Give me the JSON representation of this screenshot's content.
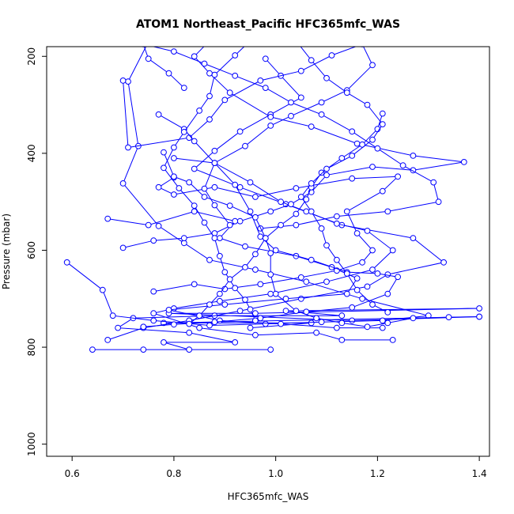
{
  "chart_data": {
    "type": "line",
    "title": "ATOM1 Northeast_Pacific HFC365mfc_WAS",
    "xlabel": "HFC365mfc_WAS",
    "ylabel": "Pressure (mbar)",
    "xlim": [
      0.55,
      1.42
    ],
    "ylim": [
      1025,
      180
    ],
    "x_ticks": [
      0.6,
      0.8,
      1.0,
      1.2,
      1.4
    ],
    "x_tick_labels": [
      "0.6",
      "0.8",
      "1.0",
      "1.2",
      "1.4"
    ],
    "y_ticks": [
      200,
      400,
      600,
      800,
      1000
    ],
    "y_tick_labels": [
      "200",
      "400",
      "600",
      "800",
      "1000"
    ],
    "grid": false,
    "legend": "none",
    "series_color": "#0000ff",
    "marker": "open-circle",
    "series": [
      {
        "points": [
          [
            0.74,
            805
          ],
          [
            0.99,
            805
          ],
          [
            0.64,
            805
          ],
          [
            0.83,
            805
          ],
          [
            0.78,
            790
          ],
          [
            0.92,
            790
          ],
          [
            0.83,
            770
          ],
          [
            0.69,
            760
          ],
          [
            0.72,
            740
          ],
          [
            0.88,
            735
          ],
          [
            1.13,
            735
          ],
          [
            1.02,
            725
          ],
          [
            1.4,
            720
          ],
          [
            0.96,
            730
          ],
          [
            0.79,
            730
          ],
          [
            1.15,
            745
          ],
          [
            1.4,
            737
          ],
          [
            0.78,
            750
          ],
          [
            1.07,
            750
          ],
          [
            0.95,
            760
          ]
        ]
      },
      {
        "points": [
          [
            0.67,
            785
          ],
          [
            0.74,
            760
          ],
          [
            0.83,
            745
          ],
          [
            0.93,
            725
          ],
          [
            1.05,
            700
          ],
          [
            1.18,
            675
          ],
          [
            1.22,
            650
          ],
          [
            1.33,
            625
          ],
          [
            1.27,
            575
          ],
          [
            1.13,
            548
          ],
          [
            1.02,
            505
          ],
          [
            0.93,
            470
          ],
          [
            0.84,
            432
          ],
          [
            0.88,
            395
          ],
          [
            0.93,
            355
          ],
          [
            0.99,
            320
          ],
          [
            1.05,
            285
          ],
          [
            1.01,
            240
          ],
          [
            0.98,
            205
          ]
        ]
      },
      {
        "points": [
          [
            0.59,
            625
          ],
          [
            0.66,
            682
          ],
          [
            0.68,
            735
          ],
          [
            0.76,
            745
          ],
          [
            0.87,
            755
          ],
          [
            0.98,
            752
          ],
          [
            1.09,
            748
          ],
          [
            1.21,
            745
          ],
          [
            1.3,
            735
          ],
          [
            1.17,
            700
          ],
          [
            1.06,
            665
          ],
          [
            0.96,
            640
          ],
          [
            0.87,
            620
          ],
          [
            0.82,
            585
          ],
          [
            0.77,
            550
          ],
          [
            0.7,
            462
          ],
          [
            0.73,
            385
          ],
          [
            0.71,
            252
          ],
          [
            0.75,
            170
          ]
        ]
      },
      {
        "points": [
          [
            0.8,
            410
          ],
          [
            0.88,
            420
          ],
          [
            0.95,
            460
          ],
          [
            1.01,
            500
          ],
          [
            1.06,
            520
          ],
          [
            1.12,
            545
          ],
          [
            1.18,
            560
          ],
          [
            1.23,
            600
          ],
          [
            1.19,
            640
          ],
          [
            1.1,
            665
          ],
          [
            0.99,
            690
          ],
          [
            0.89,
            705
          ],
          [
            0.8,
            720
          ],
          [
            0.76,
            730
          ],
          [
            0.85,
            760
          ],
          [
            0.96,
            775
          ],
          [
            1.08,
            770
          ],
          [
            1.13,
            785
          ],
          [
            1.23,
            785
          ]
        ]
      },
      {
        "points": [
          [
            0.7,
            595
          ],
          [
            0.76,
            580
          ],
          [
            0.82,
            575
          ],
          [
            0.88,
            565
          ],
          [
            0.93,
            540
          ],
          [
            0.99,
            520
          ],
          [
            1.03,
            505
          ],
          [
            1.07,
            480
          ],
          [
            1.1,
            445
          ],
          [
            1.19,
            428
          ],
          [
            1.27,
            435
          ],
          [
            1.37,
            418
          ],
          [
            1.27,
            405
          ],
          [
            1.16,
            380
          ],
          [
            1.07,
            345
          ],
          [
            0.99,
            325
          ],
          [
            0.91,
            275
          ],
          [
            0.87,
            235
          ],
          [
            0.84,
            200
          ],
          [
            0.87,
            168
          ]
        ]
      },
      {
        "points": [
          [
            0.67,
            535
          ],
          [
            0.75,
            548
          ],
          [
            0.84,
            520
          ],
          [
            0.92,
            540
          ],
          [
            0.89,
            575
          ],
          [
            0.94,
            592
          ],
          [
            1.04,
            612
          ],
          [
            1.11,
            635
          ],
          [
            1.16,
            658
          ],
          [
            1.14,
            690
          ],
          [
            1.02,
            700
          ],
          [
            0.9,
            712
          ],
          [
            0.79,
            723
          ],
          [
            0.89,
            745
          ],
          [
            1.01,
            752
          ],
          [
            1.12,
            760
          ],
          [
            1.21,
            760
          ]
        ]
      },
      {
        "points": [
          [
            0.76,
            685
          ],
          [
            0.84,
            670
          ],
          [
            0.9,
            680
          ],
          [
            0.97,
            670
          ],
          [
            1.05,
            656
          ],
          [
            1.12,
            642
          ],
          [
            1.17,
            625
          ],
          [
            1.19,
            600
          ],
          [
            1.16,
            565
          ],
          [
            1.14,
            520
          ],
          [
            1.21,
            478
          ],
          [
            1.24,
            448
          ],
          [
            1.15,
            452
          ],
          [
            1.04,
            472
          ],
          [
            0.96,
            490
          ],
          [
            0.88,
            470
          ],
          [
            0.8,
            485
          ],
          [
            0.77,
            470
          ],
          [
            0.8,
            450
          ]
        ]
      },
      {
        "points": [
          [
            0.7,
            250
          ],
          [
            0.71,
            388
          ],
          [
            0.83,
            368
          ],
          [
            0.87,
            330
          ],
          [
            0.9,
            290
          ],
          [
            0.97,
            250
          ],
          [
            1.05,
            230
          ],
          [
            1.11,
            198
          ],
          [
            1.17,
            175
          ],
          [
            1.19,
            218
          ],
          [
            1.14,
            270
          ],
          [
            1.09,
            295
          ],
          [
            1.03,
            323
          ],
          [
            0.99,
            343
          ],
          [
            0.94,
            385
          ],
          [
            0.88,
            420
          ],
          [
            0.86,
            473
          ],
          [
            0.88,
            507
          ],
          [
            0.91,
            548
          ]
        ]
      },
      {
        "points": [
          [
            0.77,
            320
          ],
          [
            0.82,
            350
          ],
          [
            0.84,
            375
          ],
          [
            0.88,
            420
          ],
          [
            0.92,
            465
          ],
          [
            0.95,
            520
          ],
          [
            0.97,
            572
          ],
          [
            1.0,
            600
          ],
          [
            1.07,
            620
          ],
          [
            1.14,
            645
          ],
          [
            1.2,
            648
          ],
          [
            1.24,
            655
          ],
          [
            1.22,
            690
          ],
          [
            1.15,
            718
          ],
          [
            1.06,
            727
          ],
          [
            0.97,
            740
          ],
          [
            0.88,
            748
          ],
          [
            0.8,
            753
          ],
          [
            0.74,
            758
          ]
        ]
      },
      {
        "points": [
          [
            0.82,
            265
          ],
          [
            0.79,
            235
          ],
          [
            0.75,
            205
          ],
          [
            0.74,
            175
          ],
          [
            0.8,
            190
          ],
          [
            0.86,
            215
          ],
          [
            0.92,
            240
          ],
          [
            0.98,
            265
          ],
          [
            1.03,
            295
          ],
          [
            1.09,
            320
          ],
          [
            1.15,
            355
          ],
          [
            1.2,
            390
          ],
          [
            1.25,
            425
          ],
          [
            1.31,
            460
          ],
          [
            1.32,
            500
          ],
          [
            1.22,
            520
          ],
          [
            1.12,
            530
          ],
          [
            1.04,
            548
          ],
          [
            0.97,
            555
          ]
        ]
      },
      {
        "points": [
          [
            0.78,
            398
          ],
          [
            0.8,
            448
          ],
          [
            0.83,
            460
          ],
          [
            0.86,
            490
          ],
          [
            0.91,
            508
          ],
          [
            0.96,
            532
          ],
          [
            0.98,
            575
          ],
          [
            0.99,
            606
          ],
          [
            0.99,
            650
          ],
          [
            1.0,
            690
          ],
          [
            1.04,
            725
          ],
          [
            1.08,
            740
          ],
          [
            1.13,
            750
          ],
          [
            1.18,
            758
          ],
          [
            1.22,
            750
          ],
          [
            1.27,
            740
          ],
          [
            1.34,
            738
          ],
          [
            1.4,
            737
          ]
        ]
      },
      {
        "points": [
          [
            0.95,
            168
          ],
          [
            0.92,
            198
          ],
          [
            0.88,
            238
          ],
          [
            0.87,
            282
          ],
          [
            0.85,
            312
          ],
          [
            0.82,
            356
          ],
          [
            0.8,
            388
          ],
          [
            0.78,
            430
          ],
          [
            0.81,
            472
          ],
          [
            0.84,
            508
          ],
          [
            0.86,
            543
          ],
          [
            0.88,
            575
          ],
          [
            0.89,
            612
          ],
          [
            0.9,
            645
          ],
          [
            0.92,
            678
          ],
          [
            0.94,
            702
          ],
          [
            0.95,
            722
          ],
          [
            0.96,
            745
          ]
        ]
      },
      {
        "points": [
          [
            1.21,
            318
          ],
          [
            1.2,
            350
          ],
          [
            1.17,
            382
          ],
          [
            1.13,
            410
          ],
          [
            1.09,
            440
          ],
          [
            1.07,
            470
          ],
          [
            1.06,
            495
          ],
          [
            1.04,
            525
          ],
          [
            1.01,
            548
          ],
          [
            0.98,
            575
          ],
          [
            0.96,
            608
          ],
          [
            0.94,
            635
          ],
          [
            0.91,
            660
          ],
          [
            0.89,
            690
          ],
          [
            0.87,
            712
          ],
          [
            0.85,
            735
          ],
          [
            0.83,
            752
          ]
        ]
      },
      {
        "points": [
          [
            1.04,
            168
          ],
          [
            1.07,
            208
          ],
          [
            1.1,
            245
          ],
          [
            1.14,
            275
          ],
          [
            1.18,
            300
          ],
          [
            1.21,
            340
          ],
          [
            1.19,
            372
          ],
          [
            1.15,
            405
          ],
          [
            1.1,
            432
          ],
          [
            1.07,
            462
          ],
          [
            1.05,
            490
          ],
          [
            1.07,
            520
          ],
          [
            1.09,
            555
          ],
          [
            1.1,
            590
          ],
          [
            1.12,
            620
          ],
          [
            1.14,
            648
          ],
          [
            1.16,
            682
          ],
          [
            1.19,
            712
          ],
          [
            1.22,
            728
          ]
        ]
      }
    ]
  }
}
